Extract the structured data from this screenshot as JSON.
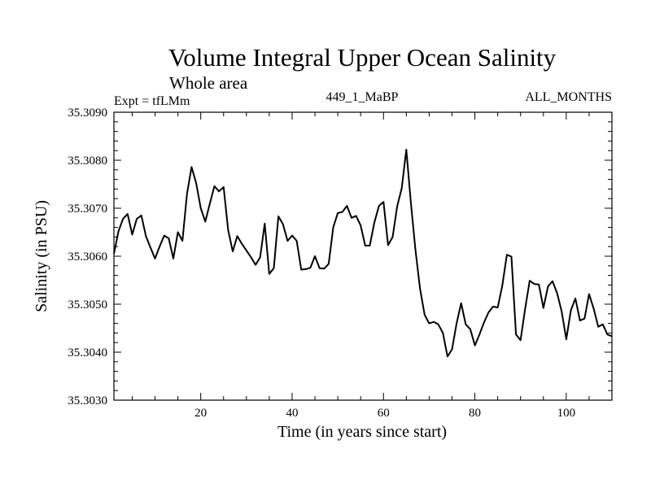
{
  "chart_data": {
    "type": "line",
    "title": "Volume Integral Upper Ocean Salinity",
    "subtitle": "Whole area",
    "left_label": "Expt = tfLMm",
    "center_label": "449_1_MaBP",
    "right_label": "ALL_MONTHS",
    "xlabel": "Time (in years since start)",
    "ylabel": "Salinity (in PSU)",
    "xlim": [
      1,
      110
    ],
    "ylim": [
      35.303,
      35.309
    ],
    "xticks": [
      20,
      40,
      60,
      80,
      100
    ],
    "xtick_labels": [
      "20",
      "40",
      "60",
      "80",
      "100"
    ],
    "yticks": [
      35.303,
      35.304,
      35.305,
      35.306,
      35.307,
      35.308,
      35.309
    ],
    "ytick_labels": [
      "35.3030",
      "35.3040",
      "35.3050",
      "35.3060",
      "35.3070",
      "35.3080",
      "35.3090"
    ],
    "grid": false,
    "series": [
      {
        "name": "salinity",
        "x": [
          1,
          2,
          3,
          4,
          5,
          6,
          7,
          8,
          9,
          10,
          11,
          12,
          13,
          14,
          15,
          16,
          17,
          18,
          19,
          20,
          21,
          22,
          23,
          24,
          25,
          26,
          27,
          28,
          29,
          30,
          31,
          32,
          33,
          34,
          35,
          36,
          37,
          38,
          39,
          40,
          41,
          42,
          43,
          44,
          45,
          46,
          47,
          48,
          49,
          50,
          51,
          52,
          53,
          54,
          55,
          56,
          57,
          58,
          59,
          60,
          61,
          62,
          63,
          64,
          65,
          66,
          67,
          68,
          69,
          70,
          71,
          72,
          73,
          74,
          75,
          76,
          77,
          78,
          79,
          80,
          81,
          82,
          83,
          84,
          85,
          86,
          87,
          88,
          89,
          90,
          91,
          92,
          93,
          94,
          95,
          96,
          97,
          98,
          99,
          100,
          101,
          102,
          103,
          104,
          105,
          106,
          107,
          108,
          109,
          110
        ],
        "y": [
          35.30605,
          35.30652,
          35.30678,
          35.30688,
          35.30645,
          35.30678,
          35.30685,
          35.30642,
          35.30618,
          35.30595,
          35.3062,
          35.30643,
          35.30637,
          35.30595,
          35.3065,
          35.30632,
          35.3073,
          35.30786,
          35.30752,
          35.307,
          35.30672,
          35.3071,
          35.30746,
          35.30735,
          35.30744,
          35.30654,
          35.3061,
          35.30642,
          35.30626,
          35.30612,
          35.30598,
          35.30582,
          35.30598,
          35.30668,
          35.30563,
          35.30575,
          35.30683,
          35.30667,
          35.30632,
          35.30643,
          35.30632,
          35.30572,
          35.30573,
          35.30576,
          35.306,
          35.30575,
          35.30574,
          35.30584,
          35.3066,
          35.3069,
          35.30692,
          35.30705,
          35.3068,
          35.30684,
          35.30664,
          35.30622,
          35.30622,
          35.3067,
          35.30705,
          35.30713,
          35.30623,
          35.3064,
          35.30704,
          35.30742,
          35.30822,
          35.3071,
          35.30612,
          35.30532,
          35.30478,
          35.3046,
          35.30463,
          35.30458,
          35.3044,
          35.30391,
          35.30406,
          35.3046,
          35.30502,
          35.30458,
          35.30448,
          35.30414,
          35.30437,
          35.30462,
          35.30483,
          35.30495,
          35.30493,
          35.30538,
          35.30603,
          35.30599,
          35.30437,
          35.30425,
          35.3049,
          35.30549,
          35.30542,
          35.30541,
          35.30492,
          35.30537,
          35.30548,
          35.30523,
          35.30485,
          35.30427,
          35.30487,
          35.30512,
          35.30466,
          35.3047,
          35.30521,
          35.30491,
          35.30453,
          35.30458,
          35.30437,
          35.30433
        ]
      }
    ]
  }
}
